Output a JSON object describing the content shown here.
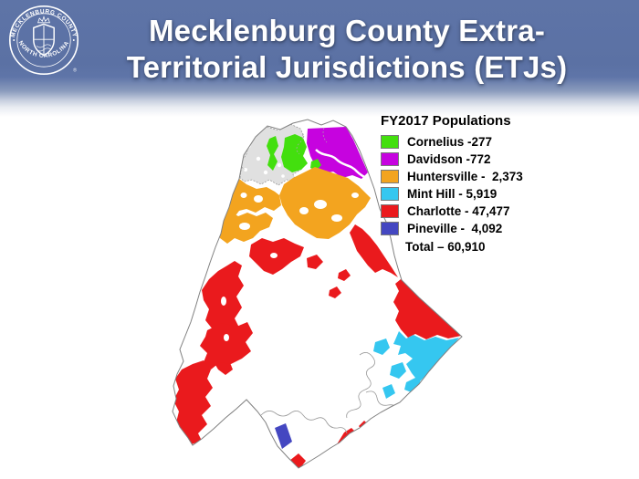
{
  "slide": {
    "title_line1": "Mecklenburg County Extra-",
    "title_line2": "Territorial Jurisdictions (ETJs)"
  },
  "seal": {
    "top_text": "MECKLENBURG COUNTY",
    "bottom_text": "NORTH CAROLINA",
    "registered_mark": "®"
  },
  "legend": {
    "title": "FY2017 Populations",
    "items": [
      {
        "region": "cornelius",
        "label": "Cornelius -277",
        "color": "#43DF0E"
      },
      {
        "region": "davidson",
        "label": "Davidson -772",
        "color": "#C603DF"
      },
      {
        "region": "huntersville",
        "label": "Huntersville -  2,373",
        "color": "#F3A41F"
      },
      {
        "region": "mint_hill",
        "label": "Mint Hill - 5,919",
        "color": "#35C7F0"
      },
      {
        "region": "charlotte",
        "label": "Charlotte - 47,477",
        "color": "#EA1A1D"
      },
      {
        "region": "pineville",
        "label": "Pineville -  4,092",
        "color": "#4447C1"
      }
    ],
    "total_label": "Total – 60,910"
  },
  "map": {
    "colors": {
      "cornelius": "#43DF0E",
      "davidson": "#C603DF",
      "huntersville": "#F3A41F",
      "mint_hill": "#35C7F0",
      "charlotte": "#EA1A1D",
      "pineville": "#4447C1",
      "lake": "#E0E0E0",
      "boundary": "#808080"
    }
  },
  "theme": {
    "header_blue": "#5B71A4"
  }
}
